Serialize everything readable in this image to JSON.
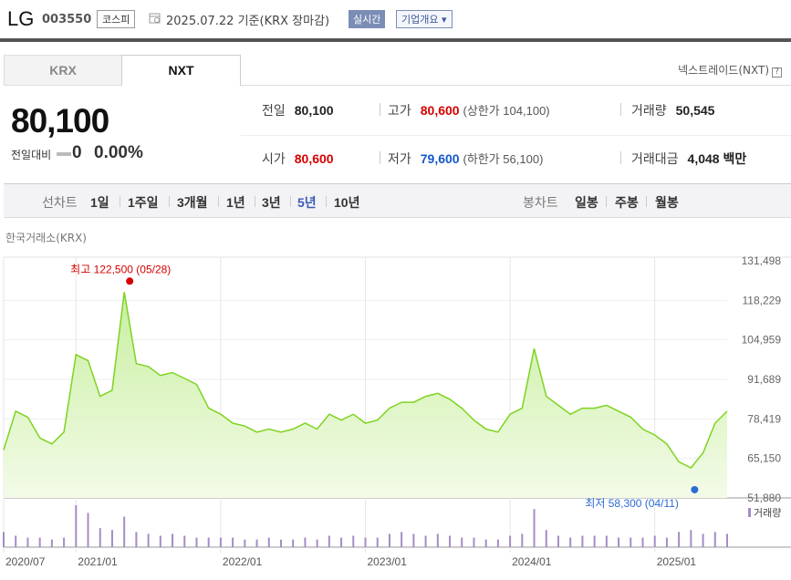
{
  "header": {
    "name": "LG",
    "code": "003550",
    "market": "코스피",
    "date": "2025.07.22",
    "basis": "기준(KRX 장마감)",
    "realtime_label": "실시간",
    "company_button": "기업개요 ▾"
  },
  "tabs": [
    {
      "label": "KRX",
      "active": false
    },
    {
      "label": "NXT",
      "active": true
    }
  ],
  "nxt_link": "넥스트레이드(NXT)",
  "price": {
    "current": "80,100",
    "change_label": "전일대비",
    "change": "0",
    "change_pct": "0.00%"
  },
  "stats": {
    "prev_label": "전일",
    "prev": "80,100",
    "high_label": "고가",
    "high": "80,600",
    "upper_label": "(상한가 104,100)",
    "volume_label": "거래량",
    "volume": "50,545",
    "open_label": "시가",
    "open": "80,600",
    "low_label": "저가",
    "low": "79,600",
    "lower_label": "(하한가 56,100)",
    "value_label": "거래대금",
    "value": "4,048",
    "value_unit": "백만"
  },
  "period_bar": {
    "line_label": "선차트",
    "line_items": [
      "1일",
      "1주일",
      "3개월",
      "1년",
      "3년",
      "5년",
      "10년"
    ],
    "active": "5년",
    "candle_label": "봉차트",
    "candle_items": [
      "일봉",
      "주봉",
      "월봉"
    ]
  },
  "chart_source": "한국거래소(KRX)",
  "colors": {
    "line": "#7ed321",
    "fill_top": "#c8efa0",
    "fill_bottom": "#f3fbe8",
    "volume": "#a48cc7",
    "high": "#d60000",
    "low": "#2d6bd4",
    "active_period": "#3b5bb5"
  },
  "chart_data": {
    "type": "area",
    "y_ticks": [
      131498,
      118229,
      104959,
      91689,
      78419,
      65150,
      51880
    ],
    "y_tick_labels": [
      "131,498",
      "118,229",
      "104,959",
      "91,689",
      "78,419",
      "65,150",
      "51,880"
    ],
    "ylim": [
      51880,
      131498
    ],
    "x_tick_labels": [
      "2020/07",
      "2021/01",
      "2022/01",
      "2023/01",
      "2024/01",
      "2025/01"
    ],
    "x_tick_dates": [
      "2020-07",
      "2021-01",
      "2022-01",
      "2023-01",
      "2024-01",
      "2025-01"
    ],
    "x_range": [
      "2020-07",
      "2025-07"
    ],
    "high_annotation": "최고 122,500 (05/28)",
    "low_annotation": "최저 58,300 (04/11)",
    "volume_legend": "거래량",
    "series": [
      {
        "x": [
          "2020-07",
          "2020-08",
          "2020-09",
          "2020-10",
          "2020-11",
          "2020-12",
          "2021-01",
          "2021-02",
          "2021-03",
          "2021-04",
          "2021-05",
          "2021-06",
          "2021-07",
          "2021-08",
          "2021-09",
          "2021-10",
          "2021-11",
          "2021-12",
          "2022-01",
          "2022-02",
          "2022-03",
          "2022-04",
          "2022-05",
          "2022-06",
          "2022-07",
          "2022-08",
          "2022-09",
          "2022-10",
          "2022-11",
          "2022-12",
          "2023-01",
          "2023-02",
          "2023-03",
          "2023-04",
          "2023-05",
          "2023-06",
          "2023-07",
          "2023-08",
          "2023-09",
          "2023-10",
          "2023-11",
          "2023-12",
          "2024-01",
          "2024-02",
          "2024-03",
          "2024-04",
          "2024-05",
          "2024-06",
          "2024-07",
          "2024-08",
          "2024-09",
          "2024-10",
          "2024-11",
          "2024-12",
          "2025-01",
          "2025-02",
          "2025-03",
          "2025-04",
          "2025-05",
          "2025-06",
          "2025-07"
        ],
        "y": [
          68000,
          81000,
          79000,
          72000,
          70000,
          74000,
          100000,
          98000,
          86000,
          88000,
          121000,
          97000,
          96000,
          93000,
          94000,
          92000,
          90000,
          82000,
          80000,
          77000,
          76000,
          74000,
          75000,
          74000,
          75000,
          77000,
          75000,
          80000,
          78000,
          80000,
          77000,
          78000,
          82000,
          84000,
          84000,
          86000,
          87000,
          85000,
          82000,
          78000,
          75000,
          74000,
          80000,
          82000,
          102000,
          86000,
          83000,
          80000,
          82000,
          82000,
          83000,
          81000,
          79000,
          75000,
          73000,
          70000,
          64000,
          62000,
          67000,
          77000,
          81000
        ]
      }
    ],
    "volume": [
      8,
      6,
      5,
      5,
      4,
      5,
      22,
      18,
      10,
      9,
      16,
      8,
      7,
      6,
      7,
      6,
      5,
      5,
      5,
      5,
      4,
      4,
      5,
      4,
      4,
      5,
      4,
      6,
      5,
      6,
      5,
      5,
      7,
      8,
      7,
      6,
      7,
      6,
      5,
      5,
      4,
      4,
      6,
      7,
      20,
      9,
      6,
      5,
      6,
      6,
      6,
      5,
      5,
      5,
      6,
      5,
      8,
      9,
      7,
      8,
      7
    ]
  }
}
